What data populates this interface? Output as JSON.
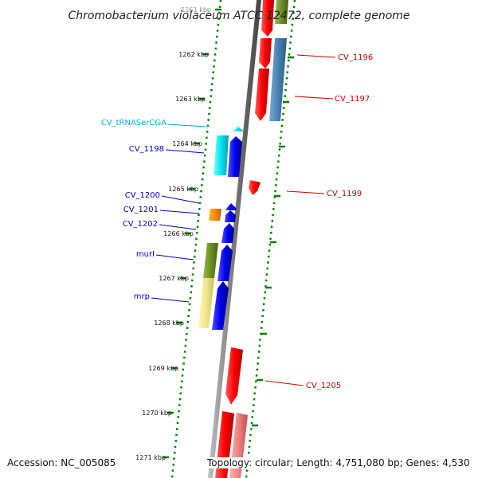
{
  "title": "Chromobacterium violaceum ATCC 12472, complete genome",
  "footer": {
    "accession": "Accession: NC_005085",
    "topology": "Topology: circular; Length: 4,751,080 bp; Genes: 4,530"
  },
  "ticks": [
    "1261 kbp",
    "1262 kbp",
    "1263 kbp",
    "1264 kbp",
    "1265 kbp",
    "1266 kbp",
    "1267 kbp",
    "1268 kbp",
    "1269 kbp",
    "1270 kbp",
    "1271 kbp"
  ],
  "labels": {
    "left": [
      "CV_tRNASerCGA",
      "CV_1198",
      "CV_1200",
      "CV_1201",
      "CV_1202",
      "murI",
      "mrp"
    ],
    "right": [
      "CV_1196",
      "CV_1197",
      "CV_1199",
      "CV_1205"
    ]
  },
  "colors": {
    "red": "#ff0000",
    "blue": "#0000ee",
    "cyan": "#00e5ee",
    "olive": "#6b8e23",
    "steelblue": "#4682b4",
    "orange": "#ff8c00",
    "khaki": "#f0e68c",
    "pink": "#f08080",
    "label_blue": "#0000cc",
    "label_cyan": "#00b0d0",
    "label_red": "#cc0000",
    "dots": "#008000"
  }
}
